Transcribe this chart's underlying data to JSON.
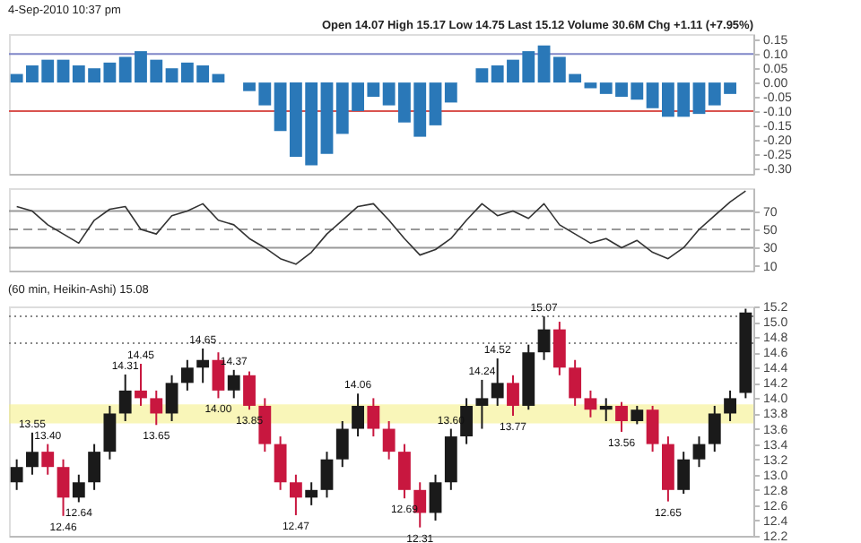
{
  "chart_data": [
    {
      "type": "bar",
      "title": "4-Sep-2010 10:37 pm",
      "annotations": [
        "Open 14.07  High 15.17  Low 14.75  Last 15.12  Volume 30.6M  Chg +1.11 (+7.95%)"
      ],
      "categories": [
        null,
        null,
        null,
        null,
        null,
        null,
        null,
        null,
        null,
        null,
        null,
        null,
        null,
        null,
        null,
        null,
        null,
        null,
        null,
        null,
        null,
        null,
        null,
        null,
        null,
        null,
        null,
        null,
        null,
        null,
        null,
        null,
        null,
        null,
        null,
        null,
        null,
        null,
        null,
        null,
        null,
        null,
        null,
        null,
        null,
        null,
        null,
        null
      ],
      "series": [
        {
          "color": "#2a78b8",
          "values": [
            0.03,
            0.06,
            0.08,
            0.08,
            0.06,
            0.05,
            0.07,
            0.09,
            0.11,
            0.08,
            0.05,
            0.07,
            0.06,
            0.03,
            0.0,
            -0.03,
            -0.08,
            -0.17,
            -0.26,
            -0.29,
            -0.25,
            -0.18,
            -0.1,
            -0.05,
            -0.08,
            -0.14,
            -0.19,
            -0.15,
            -0.07,
            0.0,
            0.05,
            0.06,
            0.08,
            0.11,
            0.13,
            0.09,
            0.03,
            -0.02,
            -0.04,
            -0.05,
            -0.06,
            -0.09,
            -0.12,
            -0.12,
            -0.11,
            -0.08,
            -0.04,
            0.0
          ]
        }
      ],
      "ylim": [
        -0.32,
        0.17
      ],
      "yticks": [
        {
          "value": 0.15,
          "label": "0.15"
        },
        {
          "value": 0.1,
          "label": "0.10"
        },
        {
          "value": 0.05,
          "label": "0.05"
        },
        {
          "value": 0,
          "label": "0.00"
        },
        {
          "value": -0.05,
          "label": "-0.05"
        },
        {
          "value": -0.1,
          "label": "-0.10"
        },
        {
          "value": -0.15,
          "label": "-0.15"
        },
        {
          "value": -0.2,
          "label": "-0.20"
        },
        {
          "value": -0.25,
          "label": "-0.25"
        },
        {
          "value": -0.3,
          "label": "-0.30"
        }
      ],
      "ref_lines": [
        {
          "axis": "y",
          "value": 0.1,
          "color": "#7f86c8"
        },
        {
          "axis": "y",
          "value": -0.1,
          "color": "#d9534f"
        }
      ],
      "tick_labels": "y",
      "grid": false
    },
    {
      "type": "line",
      "categories": [
        null,
        null,
        null,
        null,
        null,
        null,
        null,
        null,
        null,
        null,
        null,
        null,
        null,
        null,
        null,
        null,
        null,
        null,
        null,
        null,
        null,
        null,
        null,
        null,
        null,
        null,
        null,
        null,
        null,
        null,
        null,
        null,
        null,
        null,
        null,
        null,
        null,
        null,
        null,
        null,
        null,
        null,
        null,
        null,
        null,
        null,
        null,
        null
      ],
      "series": [
        {
          "color": "#333333",
          "values": [
            75,
            70,
            55,
            45,
            35,
            60,
            72,
            75,
            50,
            45,
            65,
            70,
            78,
            60,
            55,
            40,
            30,
            18,
            12,
            25,
            45,
            60,
            75,
            78,
            60,
            40,
            22,
            28,
            40,
            60,
            78,
            65,
            70,
            62,
            78,
            55,
            45,
            35,
            40,
            30,
            38,
            25,
            18,
            30,
            50,
            65,
            80,
            92
          ]
        }
      ],
      "ylim": [
        5,
        95
      ],
      "yticks": [
        10,
        30,
        50,
        70
      ],
      "ref_lines": [
        {
          "axis": "y",
          "value": 70,
          "color": "#999999",
          "line_style": "solid"
        },
        {
          "axis": "y",
          "value": 50,
          "color": "#999999",
          "line_style": "dashed"
        },
        {
          "axis": "y",
          "value": 30,
          "color": "#999999",
          "line_style": "solid"
        }
      ],
      "tick_labels": "y",
      "grid": false,
      "marker": "none",
      "line_style": "solid"
    },
    {
      "type": "candlestick",
      "title": "(60 min, Heikin-Ashi) 15.08",
      "categories": [
        null,
        null,
        null,
        null,
        null,
        null,
        null,
        null,
        null,
        null,
        null,
        null,
        null,
        null,
        null,
        null,
        null,
        null,
        null,
        null,
        null,
        null,
        null,
        null,
        null,
        null,
        null,
        null,
        null,
        null,
        null,
        null,
        null,
        null,
        null,
        null,
        null,
        null,
        null,
        null,
        null,
        null,
        null,
        null,
        null,
        null,
        null,
        null
      ],
      "ohlc": [
        [
          12.9,
          13.2,
          12.8,
          13.1
        ],
        [
          13.1,
          13.55,
          13.0,
          13.3
        ],
        [
          13.3,
          13.4,
          13.0,
          13.1
        ],
        [
          13.1,
          13.2,
          12.46,
          12.7
        ],
        [
          12.7,
          13.0,
          12.64,
          12.9
        ],
        [
          12.9,
          13.4,
          12.8,
          13.3
        ],
        [
          13.3,
          13.9,
          13.2,
          13.8
        ],
        [
          13.8,
          14.31,
          13.7,
          14.1
        ],
        [
          14.1,
          14.45,
          13.9,
          14.0
        ],
        [
          14.0,
          14.1,
          13.65,
          13.8
        ],
        [
          13.8,
          14.3,
          13.7,
          14.2
        ],
        [
          14.2,
          14.5,
          14.1,
          14.4
        ],
        [
          14.4,
          14.65,
          14.2,
          14.5
        ],
        [
          14.5,
          14.6,
          14.0,
          14.1
        ],
        [
          14.1,
          14.37,
          14.0,
          14.3
        ],
        [
          14.3,
          14.35,
          13.85,
          13.9
        ],
        [
          13.9,
          14.0,
          13.3,
          13.4
        ],
        [
          13.4,
          13.5,
          12.8,
          12.9
        ],
        [
          12.9,
          13.0,
          12.47,
          12.7
        ],
        [
          12.7,
          12.9,
          12.6,
          12.8
        ],
        [
          12.8,
          13.3,
          12.7,
          13.2
        ],
        [
          13.2,
          13.7,
          13.1,
          13.6
        ],
        [
          13.6,
          14.06,
          13.5,
          13.9
        ],
        [
          13.9,
          14.0,
          13.5,
          13.6
        ],
        [
          13.6,
          13.7,
          13.2,
          13.3
        ],
        [
          13.3,
          13.4,
          12.69,
          12.8
        ],
        [
          12.8,
          12.9,
          12.31,
          12.5
        ],
        [
          12.5,
          13.0,
          12.4,
          12.9
        ],
        [
          12.9,
          13.6,
          12.8,
          13.5
        ],
        [
          13.5,
          14.0,
          13.4,
          13.9
        ],
        [
          13.9,
          14.24,
          13.6,
          14.0
        ],
        [
          14.0,
          14.52,
          13.9,
          14.2
        ],
        [
          14.2,
          14.3,
          13.77,
          13.9
        ],
        [
          13.9,
          14.7,
          13.85,
          14.6
        ],
        [
          14.6,
          15.07,
          14.5,
          14.9
        ],
        [
          14.9,
          15.0,
          14.3,
          14.4
        ],
        [
          14.4,
          14.5,
          13.9,
          14.0
        ],
        [
          14.0,
          14.1,
          13.75,
          13.85
        ],
        [
          13.85,
          14.0,
          13.7,
          13.9
        ],
        [
          13.9,
          13.95,
          13.56,
          13.7
        ],
        [
          13.7,
          13.9,
          13.66,
          13.85
        ],
        [
          13.85,
          13.9,
          13.3,
          13.4
        ],
        [
          13.4,
          13.5,
          12.65,
          12.8
        ],
        [
          12.8,
          13.3,
          12.75,
          13.2
        ],
        [
          13.2,
          13.5,
          13.1,
          13.4
        ],
        [
          13.4,
          13.9,
          13.3,
          13.8
        ],
        [
          13.8,
          14.1,
          13.7,
          14.0
        ],
        [
          14.07,
          15.17,
          14.0,
          15.12
        ]
      ],
      "colors": [
        "#1a1a1a",
        "#1a1a1a",
        "#c8173f",
        "#c8173f",
        "#1a1a1a",
        "#1a1a1a",
        "#1a1a1a",
        "#1a1a1a",
        "#c8173f",
        "#c8173f",
        "#1a1a1a",
        "#1a1a1a",
        "#1a1a1a",
        "#c8173f",
        "#1a1a1a",
        "#c8173f",
        "#c8173f",
        "#c8173f",
        "#c8173f",
        "#1a1a1a",
        "#1a1a1a",
        "#1a1a1a",
        "#1a1a1a",
        "#c8173f",
        "#c8173f",
        "#c8173f",
        "#c8173f",
        "#1a1a1a",
        "#1a1a1a",
        "#1a1a1a",
        "#1a1a1a",
        "#1a1a1a",
        "#c8173f",
        "#1a1a1a",
        "#1a1a1a",
        "#c8173f",
        "#c8173f",
        "#c8173f",
        "#1a1a1a",
        "#c8173f",
        "#1a1a1a",
        "#c8173f",
        "#c8173f",
        "#1a1a1a",
        "#1a1a1a",
        "#1a1a1a",
        "#1a1a1a",
        "#1a1a1a"
      ],
      "ylim": [
        12.2,
        15.2
      ],
      "yticks": [
        12.2,
        12.4,
        12.6,
        12.8,
        {
          "value": 13,
          "label": "13.0"
        },
        13.2,
        13.4,
        13.6,
        13.8,
        {
          "value": 14,
          "label": "14.0"
        },
        14.2,
        14.4,
        14.6,
        14.8,
        {
          "value": 15,
          "label": "15.0"
        },
        15.2
      ],
      "annotations": [
        {
          "text": "13.55",
          "y": 13.55
        },
        {
          "text": "12.46",
          "y": 12.46
        },
        {
          "text": "12.64",
          "y": 12.64
        },
        {
          "text": "14.31",
          "y": 14.31
        },
        {
          "text": "14.45",
          "y": 14.45
        },
        {
          "text": "13.65",
          "y": 13.65
        },
        {
          "text": "14.65",
          "y": 14.65
        },
        {
          "text": "14.37",
          "y": 14.37
        },
        {
          "text": "13.85",
          "y": 13.85
        },
        {
          "text": "12.47",
          "y": 12.47
        },
        {
          "text": "14.06",
          "y": 14.06
        },
        {
          "text": "13.40",
          "y": 13.4
        },
        {
          "text": "12.69",
          "y": 12.69
        },
        {
          "text": "12.31",
          "y": 12.31
        },
        {
          "text": "14.24",
          "y": 14.24
        },
        {
          "text": "13.60",
          "y": 13.6
        },
        {
          "text": "14.52",
          "y": 14.52
        },
        {
          "text": "13.77",
          "y": 13.77
        },
        {
          "text": "15.07",
          "y": 15.07
        },
        {
          "text": "14.00",
          "y": 14.0
        },
        {
          "text": "13.56",
          "y": 13.56
        },
        {
          "text": "12.65",
          "y": 12.65
        }
      ],
      "ref_lines": [
        {
          "axis": "y",
          "value": 15.07,
          "color": "#888888",
          "line_style": "dotted"
        },
        {
          "axis": "y",
          "value": 14.72,
          "color": "#888888",
          "line_style": "dotted"
        }
      ],
      "bands": [
        {
          "axis": "y",
          "from": 13.67,
          "to": 13.92,
          "color": "#f5f08a"
        }
      ],
      "tick_labels": "y",
      "grid": false
    }
  ]
}
